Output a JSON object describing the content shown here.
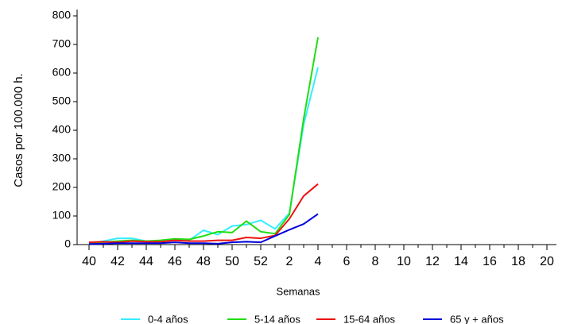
{
  "chart_data": {
    "type": "line",
    "x_label": "Semanas",
    "y_label": "Casos por 100.000 h.",
    "categories": [
      "40",
      null,
      "42",
      null,
      "44",
      null,
      "46",
      null,
      "48",
      null,
      "50",
      null,
      "52",
      null,
      "2",
      null,
      "4",
      null,
      "6",
      null,
      "8",
      null,
      "10",
      null,
      "12",
      null,
      "14",
      null,
      "16",
      null,
      "18",
      null,
      "20"
    ],
    "series": [
      {
        "name": "0-4 años",
        "color": "#33eeff",
        "values": [
          5,
          12,
          22,
          22,
          12,
          12,
          18,
          15,
          50,
          35,
          65,
          70,
          85,
          55,
          110,
          420,
          620,
          null,
          null,
          null,
          null,
          null,
          null,
          null,
          null,
          null,
          null,
          null,
          null,
          null,
          null,
          null,
          null
        ]
      },
      {
        "name": "5-14 años",
        "color": "#22dd11",
        "values": [
          3,
          8,
          12,
          15,
          12,
          15,
          20,
          18,
          30,
          45,
          42,
          82,
          45,
          38,
          105,
          440,
          725,
          null,
          null,
          null,
          null,
          null,
          null,
          null,
          null,
          null,
          null,
          null,
          null,
          null,
          null,
          null,
          null
        ]
      },
      {
        "name": "15-64 años",
        "color": "#ee1111",
        "values": [
          8,
          10,
          8,
          12,
          10,
          10,
          15,
          12,
          12,
          15,
          15,
          25,
          22,
          32,
          90,
          170,
          212,
          null,
          null,
          null,
          null,
          null,
          null,
          null,
          null,
          null,
          null,
          null,
          null,
          null,
          null,
          null,
          null
        ]
      },
      {
        "name": "65 y + años",
        "color": "#0000dd",
        "values": [
          2,
          3,
          5,
          5,
          5,
          5,
          8,
          5,
          5,
          3,
          8,
          10,
          8,
          30,
          52,
          72,
          107,
          null,
          null,
          null,
          null,
          null,
          null,
          null,
          null,
          null,
          null,
          null,
          null,
          null,
          null,
          null,
          null
        ]
      }
    ],
    "ylim": [
      0,
      800
    ],
    "yticks": [
      0,
      100,
      200,
      300,
      400,
      500,
      600,
      700,
      800
    ]
  }
}
